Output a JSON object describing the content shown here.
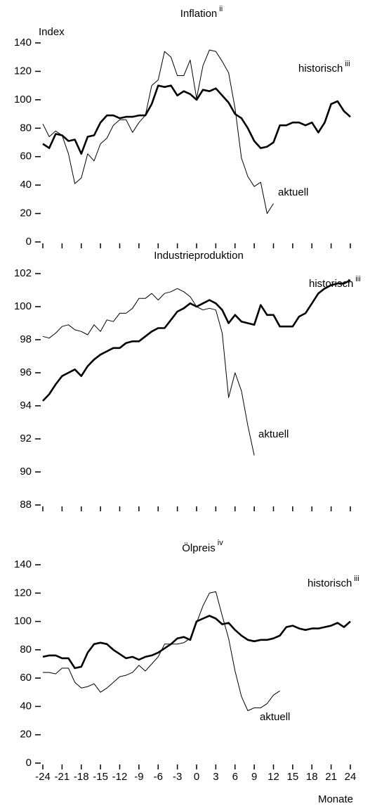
{
  "chart_data": [
    {
      "type": "line",
      "title": "Inflation",
      "title_superscript": "ii",
      "y_label": "Index",
      "x": [
        -24,
        -23,
        -22,
        -21,
        -20,
        -19,
        -18,
        -17,
        -16,
        -15,
        -14,
        -13,
        -12,
        -11,
        -10,
        -9,
        -8,
        -7,
        -6,
        -5,
        -4,
        -3,
        -2,
        -1,
        0,
        1,
        2,
        3,
        4,
        5,
        6,
        7,
        8,
        9,
        10,
        11,
        12,
        13,
        14,
        15,
        16,
        17,
        18,
        19,
        20,
        21,
        22,
        23,
        24
      ],
      "series": [
        {
          "name": "historisch",
          "name_superscript": "iii",
          "color": "#000000",
          "values": [
            69,
            66,
            76,
            75,
            71,
            72,
            62,
            74,
            75,
            84,
            89,
            89,
            87,
            88,
            88,
            89,
            89,
            97,
            110,
            109,
            110,
            103,
            106,
            104,
            100,
            107,
            106,
            108,
            103,
            98,
            90,
            87,
            80,
            71,
            66,
            67,
            70,
            82,
            82,
            84,
            84,
            82,
            84,
            77,
            84,
            97,
            99,
            92,
            88
          ]
        },
        {
          "name": "aktuell",
          "color": "#000000",
          "values": [
            83,
            74,
            78,
            75,
            62,
            41,
            45,
            62,
            57,
            69,
            73,
            82,
            86,
            86,
            77,
            84,
            89,
            110,
            114,
            134,
            130,
            117,
            117,
            128,
            101,
            124,
            135,
            134,
            127,
            119,
            94,
            59,
            46,
            39,
            42,
            20,
            27,
            null,
            null,
            null,
            null,
            null,
            null,
            null,
            null,
            null,
            null,
            null,
            null
          ]
        }
      ],
      "xlim": [
        -24,
        24
      ],
      "xticks": [
        -24,
        -21,
        -18,
        -15,
        -12,
        -9,
        -6,
        -3,
        0,
        3,
        6,
        9,
        12,
        15,
        18,
        21,
        24
      ],
      "show_xtick_labels": false,
      "ylim": [
        0,
        140
      ],
      "yticks": [
        0,
        20,
        40,
        60,
        80,
        100,
        120,
        140
      ]
    },
    {
      "type": "line",
      "title": "Industrieproduktion",
      "x": [
        -24,
        -23,
        -22,
        -21,
        -20,
        -19,
        -18,
        -17,
        -16,
        -15,
        -14,
        -13,
        -12,
        -11,
        -10,
        -9,
        -8,
        -7,
        -6,
        -5,
        -4,
        -3,
        -2,
        -1,
        0,
        1,
        2,
        3,
        4,
        5,
        6,
        7,
        8,
        9,
        10,
        11,
        12,
        13,
        14,
        15,
        16,
        17,
        18,
        19,
        20,
        21,
        22,
        23,
        24
      ],
      "series": [
        {
          "name": "historisch",
          "name_superscript": "iii",
          "color": "#000000",
          "values": [
            94.3,
            94.7,
            95.3,
            95.8,
            96.0,
            96.2,
            95.8,
            96.4,
            96.8,
            97.1,
            97.3,
            97.5,
            97.5,
            97.8,
            97.9,
            97.9,
            98.2,
            98.5,
            98.7,
            98.7,
            99.2,
            99.7,
            99.9,
            100.2,
            100.0,
            100.2,
            100.4,
            100.2,
            99.8,
            99.0,
            99.5,
            99.1,
            99.0,
            98.9,
            100.1,
            99.5,
            99.5,
            98.8,
            98.8,
            98.8,
            99.4,
            99.6,
            100.2,
            100.8,
            101.1,
            101.3,
            101.4,
            101.4,
            101.6
          ]
        },
        {
          "name": "aktuell",
          "color": "#000000",
          "values": [
            98.2,
            98.1,
            98.4,
            98.8,
            98.9,
            98.6,
            98.5,
            98.3,
            98.9,
            98.5,
            99.2,
            99.1,
            99.6,
            99.6,
            99.9,
            100.5,
            100.5,
            100.8,
            100.4,
            100.8,
            100.9,
            101.1,
            100.9,
            100.6,
            100.0,
            99.8,
            99.9,
            99.8,
            98.4,
            94.5,
            96.0,
            94.9,
            92.8,
            91.0,
            null,
            null,
            null,
            null,
            null,
            null,
            null,
            null,
            null,
            null,
            null,
            null,
            null,
            null,
            null
          ]
        }
      ],
      "xlim": [
        -24,
        24
      ],
      "xticks": [
        -24,
        -21,
        -18,
        -15,
        -12,
        -9,
        -6,
        -3,
        0,
        3,
        6,
        9,
        12,
        15,
        18,
        21,
        24
      ],
      "show_xtick_labels": false,
      "ylim": [
        88,
        102
      ],
      "yticks": [
        88,
        90,
        92,
        94,
        96,
        98,
        100,
        102
      ]
    },
    {
      "type": "line",
      "title": "Ölpreis",
      "title_superscript": "iv",
      "x_label": "Monate",
      "x": [
        -24,
        -23,
        -22,
        -21,
        -20,
        -19,
        -18,
        -17,
        -16,
        -15,
        -14,
        -13,
        -12,
        -11,
        -10,
        -9,
        -8,
        -7,
        -6,
        -5,
        -4,
        -3,
        -2,
        -1,
        0,
        1,
        2,
        3,
        4,
        5,
        6,
        7,
        8,
        9,
        10,
        11,
        12,
        13,
        14,
        15,
        16,
        17,
        18,
        19,
        20,
        21,
        22,
        23,
        24
      ],
      "series": [
        {
          "name": "historisch",
          "name_superscript": "iii",
          "color": "#000000",
          "values": [
            75,
            76,
            76,
            74,
            74,
            67,
            68,
            78,
            84,
            85,
            84,
            80,
            77,
            74,
            75,
            73,
            75,
            76,
            78,
            81,
            84,
            88,
            89,
            87,
            100,
            102,
            104,
            102,
            98,
            99,
            94,
            90,
            87,
            86,
            87,
            87,
            88,
            90,
            96,
            97,
            95,
            94,
            95,
            95,
            96,
            97,
            99,
            96,
            100
          ]
        },
        {
          "name": "aktuell",
          "color": "#000000",
          "values": [
            64,
            64,
            63,
            67,
            67,
            57,
            53,
            54,
            56,
            50,
            53,
            57,
            61,
            62,
            64,
            69,
            65,
            70,
            75,
            84,
            84,
            84,
            85,
            88,
            99,
            111,
            120,
            121,
            104,
            88,
            65,
            47,
            37,
            39,
            39,
            42,
            48,
            51,
            null,
            null,
            null,
            null,
            null,
            null,
            null,
            null,
            null,
            null,
            null
          ]
        }
      ],
      "xlim": [
        -24,
        24
      ],
      "xticks": [
        -24,
        -21,
        -18,
        -15,
        -12,
        -9,
        -6,
        -3,
        0,
        3,
        6,
        9,
        12,
        15,
        18,
        21,
        24
      ],
      "show_xtick_labels": true,
      "ylim": [
        0,
        140
      ],
      "yticks": [
        0,
        20,
        40,
        60,
        80,
        100,
        120,
        140
      ]
    }
  ]
}
